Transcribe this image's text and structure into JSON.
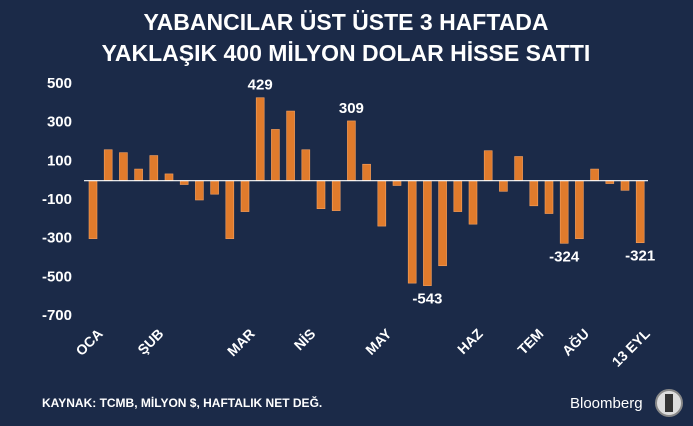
{
  "chart_data": {
    "type": "bar",
    "title": [
      "YABANCILAR ÜST ÜSTE 3 HAFTADA",
      "YAKLAŞIK 400 MİLYON DOLAR HİSSE SATTI"
    ],
    "categories": [
      "OCA",
      null,
      null,
      null,
      "ŞUB",
      null,
      null,
      null,
      null,
      null,
      "MAR",
      null,
      null,
      null,
      "NİS",
      null,
      null,
      null,
      null,
      "MAY",
      null,
      null,
      null,
      null,
      null,
      "HAZ",
      null,
      null,
      null,
      "TEM",
      null,
      null,
      "AĞU",
      null,
      null,
      null,
      "13 EYL"
    ],
    "values": [
      -300,
      160,
      145,
      60,
      130,
      35,
      -20,
      -100,
      -70,
      -300,
      -160,
      429,
      265,
      360,
      160,
      -145,
      -155,
      309,
      85,
      -235,
      -25,
      -530,
      -543,
      -440,
      -160,
      -225,
      155,
      -55,
      125,
      -130,
      -170,
      -324,
      -300,
      60,
      -15,
      -50,
      -321
    ],
    "value_labels": [
      null,
      null,
      null,
      null,
      null,
      null,
      null,
      null,
      null,
      null,
      null,
      "429",
      null,
      null,
      null,
      null,
      null,
      "309",
      null,
      null,
      null,
      null,
      "-543",
      null,
      null,
      null,
      null,
      null,
      null,
      null,
      null,
      "-324",
      null,
      null,
      null,
      null,
      "-321"
    ],
    "color": "#e07b2c",
    "ylim": [
      -700,
      500
    ],
    "yticks": [
      -700,
      -500,
      -300,
      -100,
      100,
      300,
      500
    ],
    "source": "KAYNAK: TCMB, MİLYON $, HAFTALIK NET DEĞ.",
    "brand": "Bloomberg"
  }
}
